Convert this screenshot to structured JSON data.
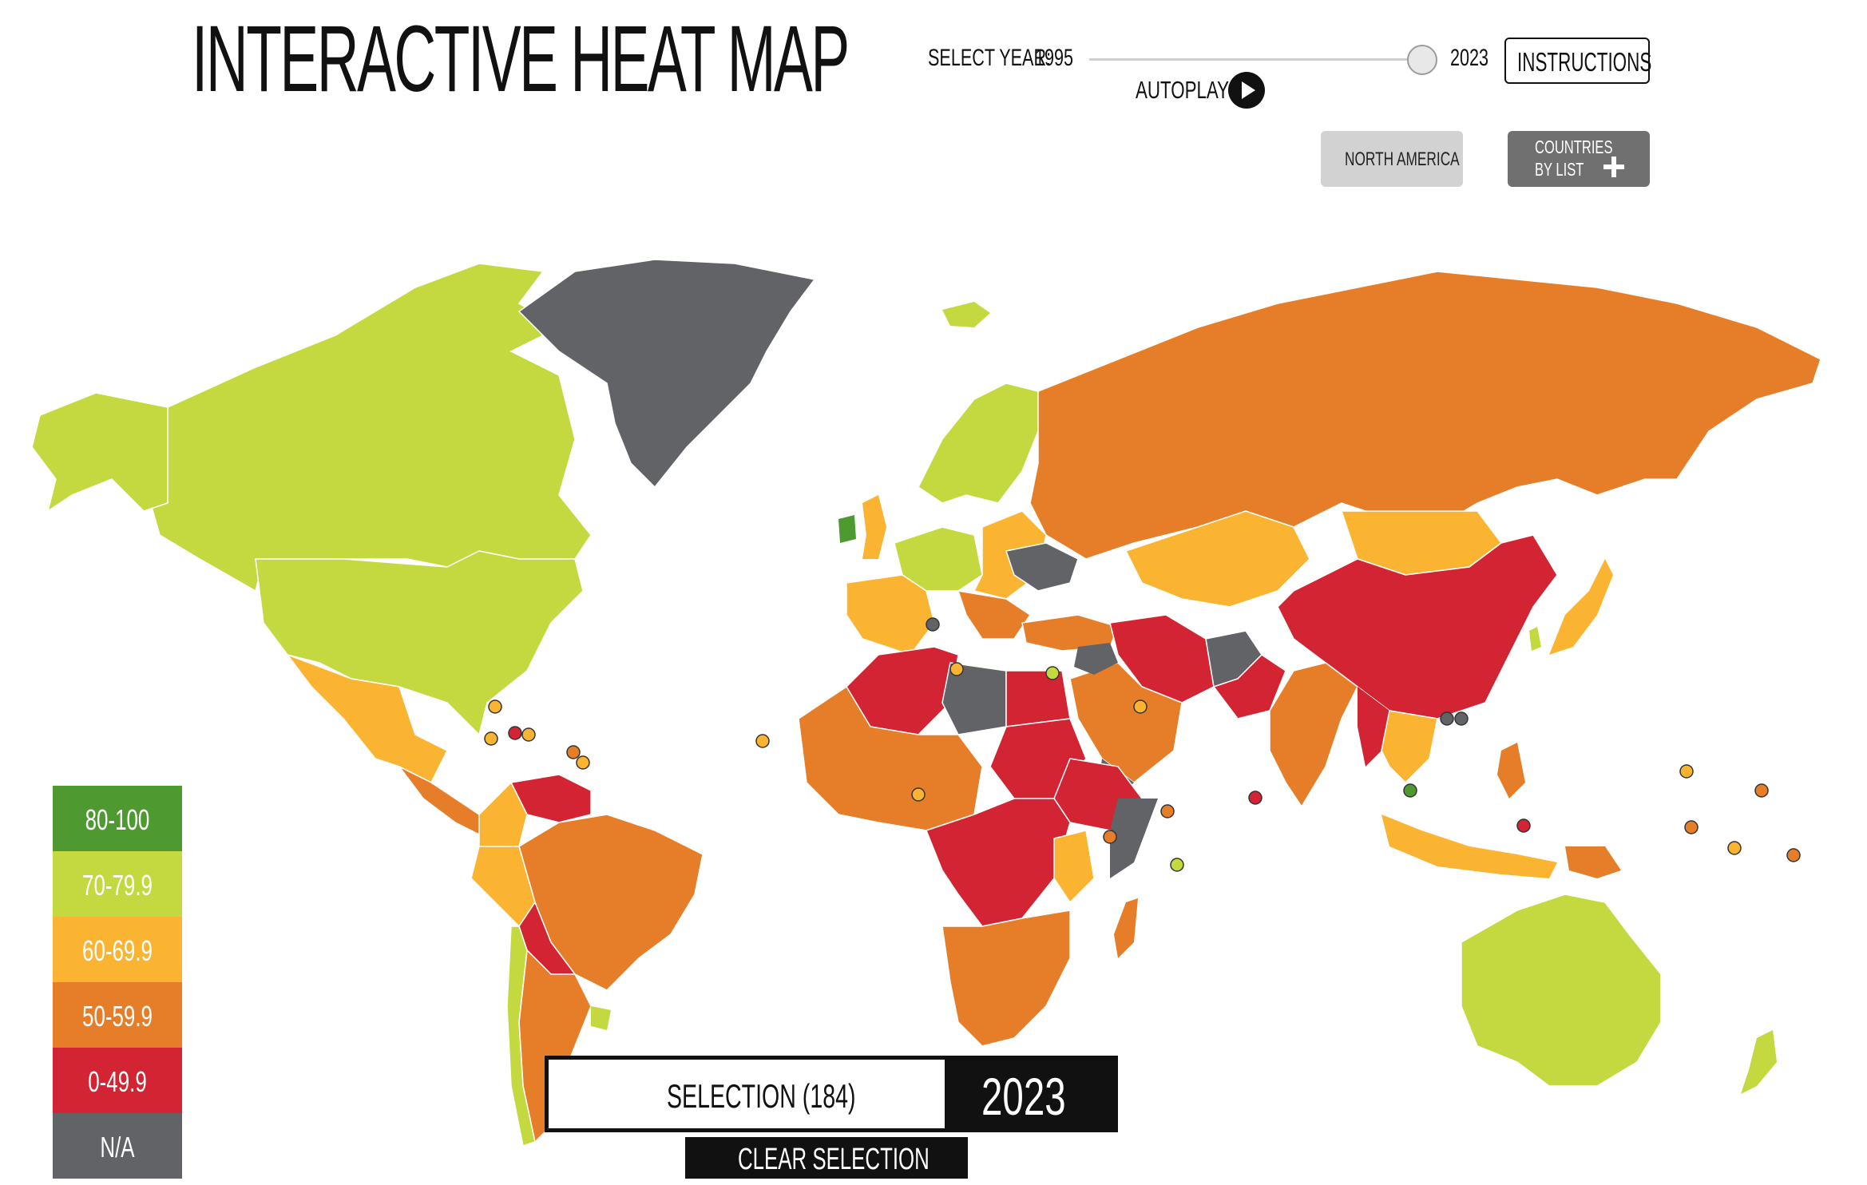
{
  "header": {
    "title": "INTERACTIVE HEAT MAP",
    "select_year_label": "SELECT YEAR:",
    "year_start": "1995",
    "year_end": "2023",
    "slider_value": 2023,
    "instructions_label": "INSTRUCTIONS",
    "autoplay_label": "AUTOPLAY"
  },
  "filters": {
    "region_label": "NORTH AMERICA",
    "countries_label_line1": "COUNTRIES",
    "countries_label_line2": "BY LIST"
  },
  "legend": [
    {
      "label": "80-100",
      "color": "#4e9a31"
    },
    {
      "label": "70-79.9",
      "color": "#c3d93f"
    },
    {
      "label": "60-69.9",
      "color": "#fab432"
    },
    {
      "label": "50-59.9",
      "color": "#e67e29"
    },
    {
      "label": "0-49.9",
      "color": "#d22432"
    },
    {
      "label": "N/A",
      "color": "#626366"
    }
  ],
  "selection": {
    "label": "SELECTION (184)",
    "year": "2023",
    "clear_label": "CLEAR SELECTION"
  },
  "colors": {
    "band_80_100": "#4e9a31",
    "band_70_79": "#c3d93f",
    "band_60_69": "#fab432",
    "band_50_59": "#e67e29",
    "band_0_49": "#d22432",
    "na": "#626366"
  }
}
